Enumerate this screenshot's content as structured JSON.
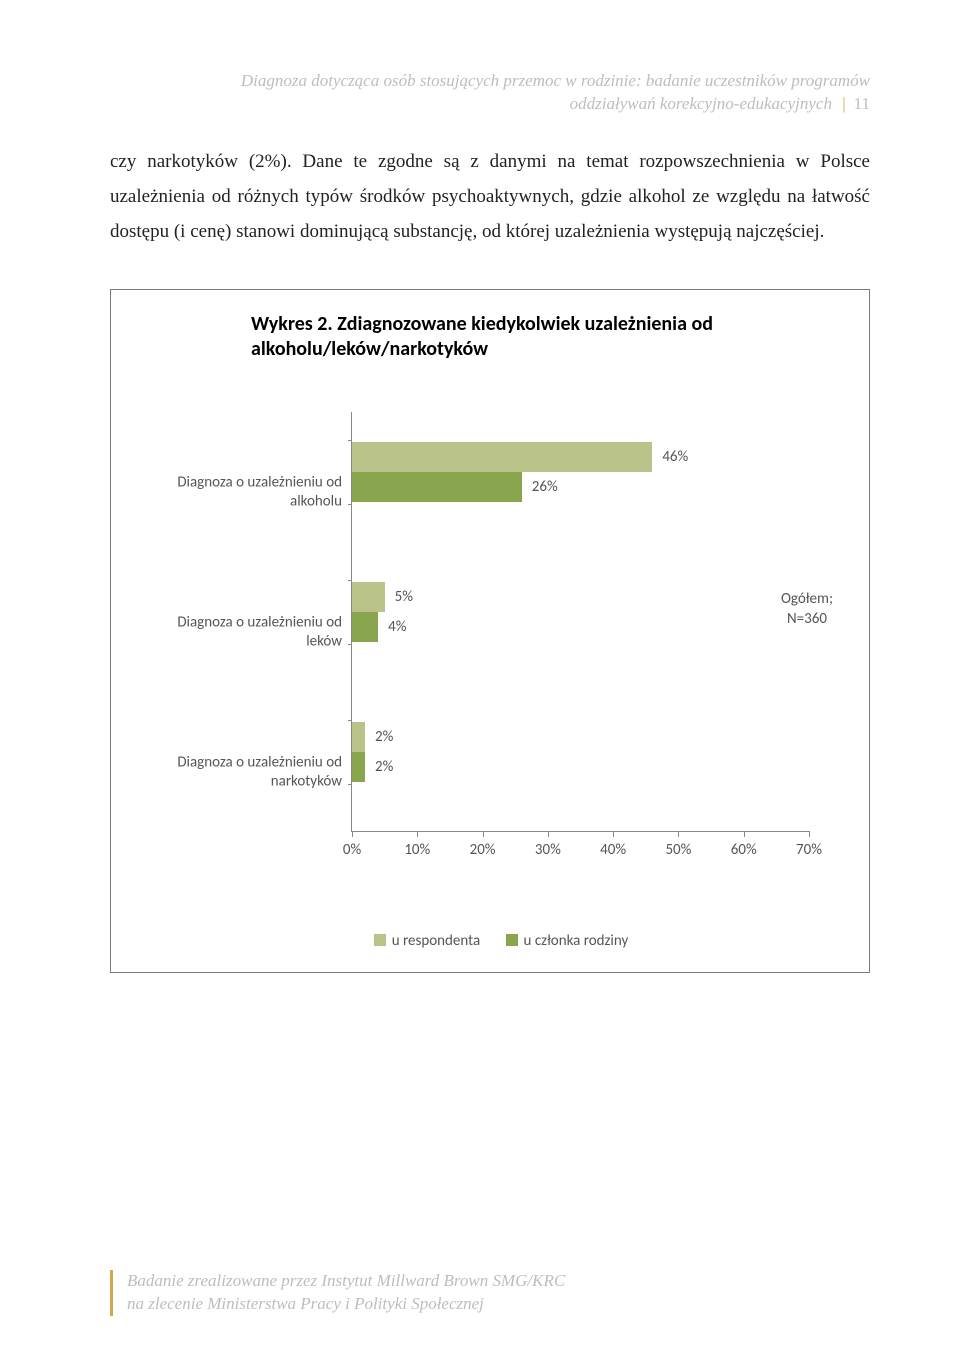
{
  "header": {
    "line1": "Diagnoza dotycząca osób stosujących przemoc w rodzinie: badanie uczestników programów",
    "line2": "oddziaływań korekcyjno-edukacyjnych",
    "page_number": "11"
  },
  "body": {
    "paragraph": "czy narkotyków (2%). Dane te zgodne są z danymi na temat rozpowszechnienia w Polsce uzależnienia od różnych typów środków psychoaktywnych, gdzie alkohol ze względu na łatwość dostępu (i cenę) stanowi dominującą substancję, od której uzależnienia występują najczęściej."
  },
  "chart": {
    "title": "Wykres 2. Zdiagnozowane kiedykolwiek uzależnienia od alkoholu/leków/narkotyków",
    "x_axis": {
      "min": 0,
      "max": 70,
      "step": 10,
      "ticks": [
        "0%",
        "10%",
        "20%",
        "30%",
        "40%",
        "50%",
        "60%",
        "70%"
      ]
    },
    "colors": {
      "series1": "#b9c288",
      "series2": "#89a54e",
      "axis": "#888888",
      "text": "#555555"
    },
    "side_note": {
      "line1": "Ogółem;",
      "line2": "N=360"
    },
    "groups": [
      {
        "label": "Diagnoza o uzależnieniu od alkoholu",
        "v1": 46,
        "v2": 26,
        "l1": "46%",
        "l2": "26%"
      },
      {
        "label": "Diagnoza o uzależnieniu od leków",
        "v1": 5,
        "v2": 4,
        "l1": "5%",
        "l2": "4%"
      },
      {
        "label": "Diagnoza o uzależnieniu od narkotyków",
        "v1": 2,
        "v2": 2,
        "l1": "2%",
        "l2": "2%"
      }
    ],
    "legend": {
      "s1": "u respondenta",
      "s2": "u członka rodziny"
    }
  },
  "footer": {
    "line1": "Badanie zrealizowane przez Instytut Millward Brown SMG/KRC",
    "line2": "na zlecenie Ministerstwa Pracy i Polityki Społecznej"
  }
}
